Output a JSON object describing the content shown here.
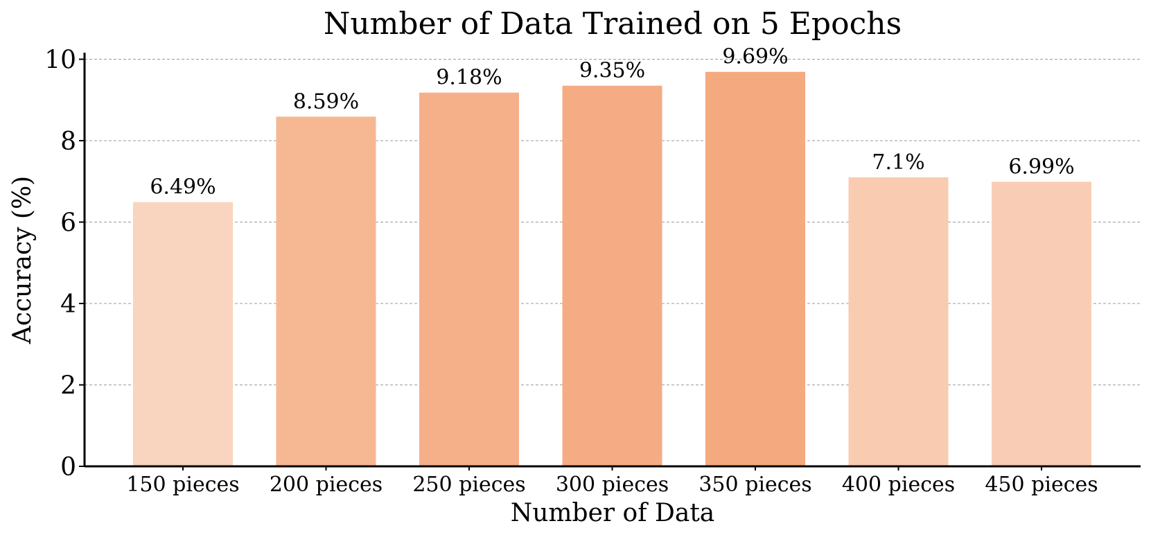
{
  "chart_data": {
    "type": "bar",
    "title": "Number of Data Trained on 5 Epochs",
    "xlabel": "Number of Data",
    "ylabel": "Accuracy (%)",
    "categories": [
      "150 pieces",
      "200 pieces",
      "250 pieces",
      "300 pieces",
      "350 pieces",
      "400 pieces",
      "450 pieces"
    ],
    "values": [
      6.49,
      8.59,
      9.18,
      9.35,
      9.69,
      7.1,
      6.99
    ],
    "value_labels": [
      "6.49%",
      "8.59%",
      "9.18%",
      "9.35%",
      "9.69%",
      "7.1%",
      "6.99%"
    ],
    "ylim": [
      0,
      10
    ],
    "yticks": [
      0,
      2,
      4,
      6,
      8,
      10
    ],
    "grid": true,
    "colors": [
      "#f9d4bf",
      "#f6b893",
      "#f5b08a",
      "#f5ac84",
      "#f4a97f",
      "#f9cbb1",
      "#f9cdb5"
    ]
  }
}
